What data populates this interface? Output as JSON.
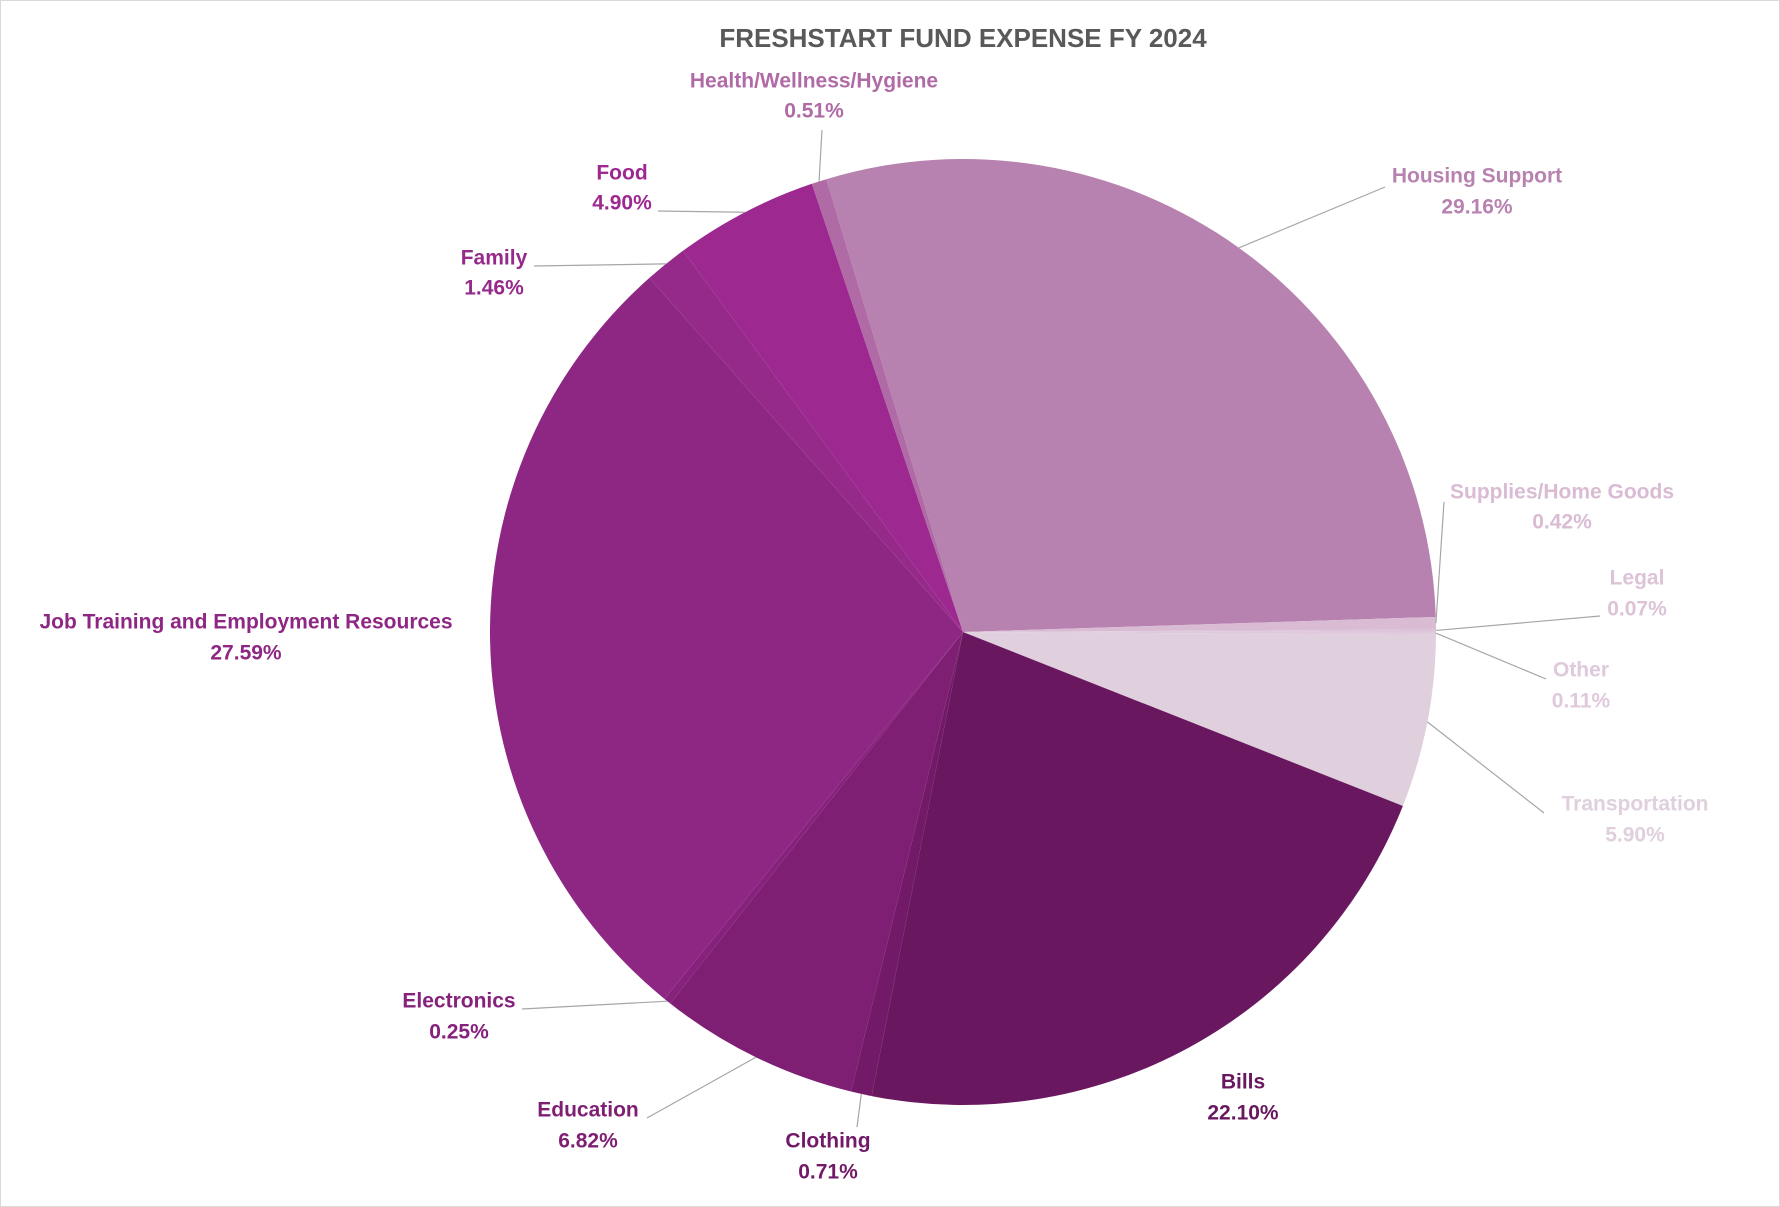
{
  "chart_data": {
    "type": "pie",
    "title": "FRESHSTART FUND EXPENSE FY 2024",
    "categories": [
      "Housing Support",
      "Supplies/Home Goods",
      "Legal",
      "Other",
      "Transportation",
      "Bills",
      "Clothing",
      "Education",
      "Electronics",
      "Job Training and Employment Resources",
      "Family",
      "Food",
      "Health/Wellness/Hygiene"
    ],
    "values": [
      29.16,
      0.42,
      0.07,
      0.11,
      5.9,
      22.1,
      0.71,
      6.82,
      0.25,
      27.59,
      1.46,
      4.9,
      0.51
    ],
    "value_labels": [
      "29.16%",
      "0.42%",
      "0.07%",
      "0.11%",
      "5.90%",
      "22.10%",
      "0.71%",
      "6.82%",
      "0.25%",
      "27.59%",
      "1.46%",
      "4.90%",
      "0.51%"
    ],
    "colors": [
      "#b882b0",
      "#d9bcd4",
      "#dcc3d8",
      "#dfc9dc",
      "#e0cfdd",
      "#69185f",
      "#721a68",
      "#7e1f74",
      "#86217c",
      "#8e2784",
      "#952a8b",
      "#9c2890",
      "#b06aa6"
    ]
  }
}
